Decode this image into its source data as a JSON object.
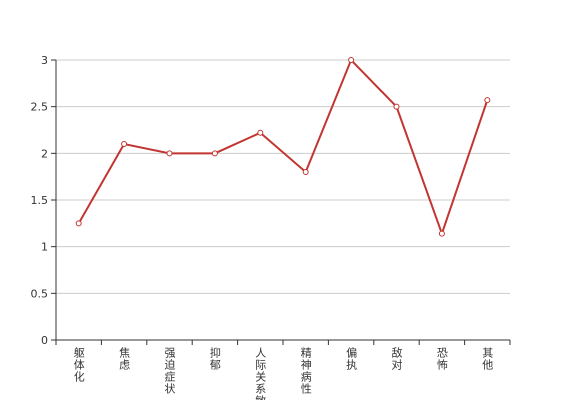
{
  "chart_data": {
    "type": "line",
    "categories": [
      "躯体化",
      "焦虑",
      "强迫症状",
      "抑郁",
      "人际关系敏感",
      "精神病性",
      "偏执",
      "敌对",
      "恐怖",
      "其他"
    ],
    "series": [
      {
        "color": "#c23531",
        "values": [
          1.25,
          2.1,
          2.0,
          2.0,
          2.22,
          1.8,
          3.0,
          2.5,
          1.14,
          2.57
        ]
      }
    ],
    "ylim": [
      0,
      3
    ],
    "yticks": [
      0,
      0.5,
      1,
      1.5,
      2,
      2.5,
      3
    ],
    "grid": true
  }
}
